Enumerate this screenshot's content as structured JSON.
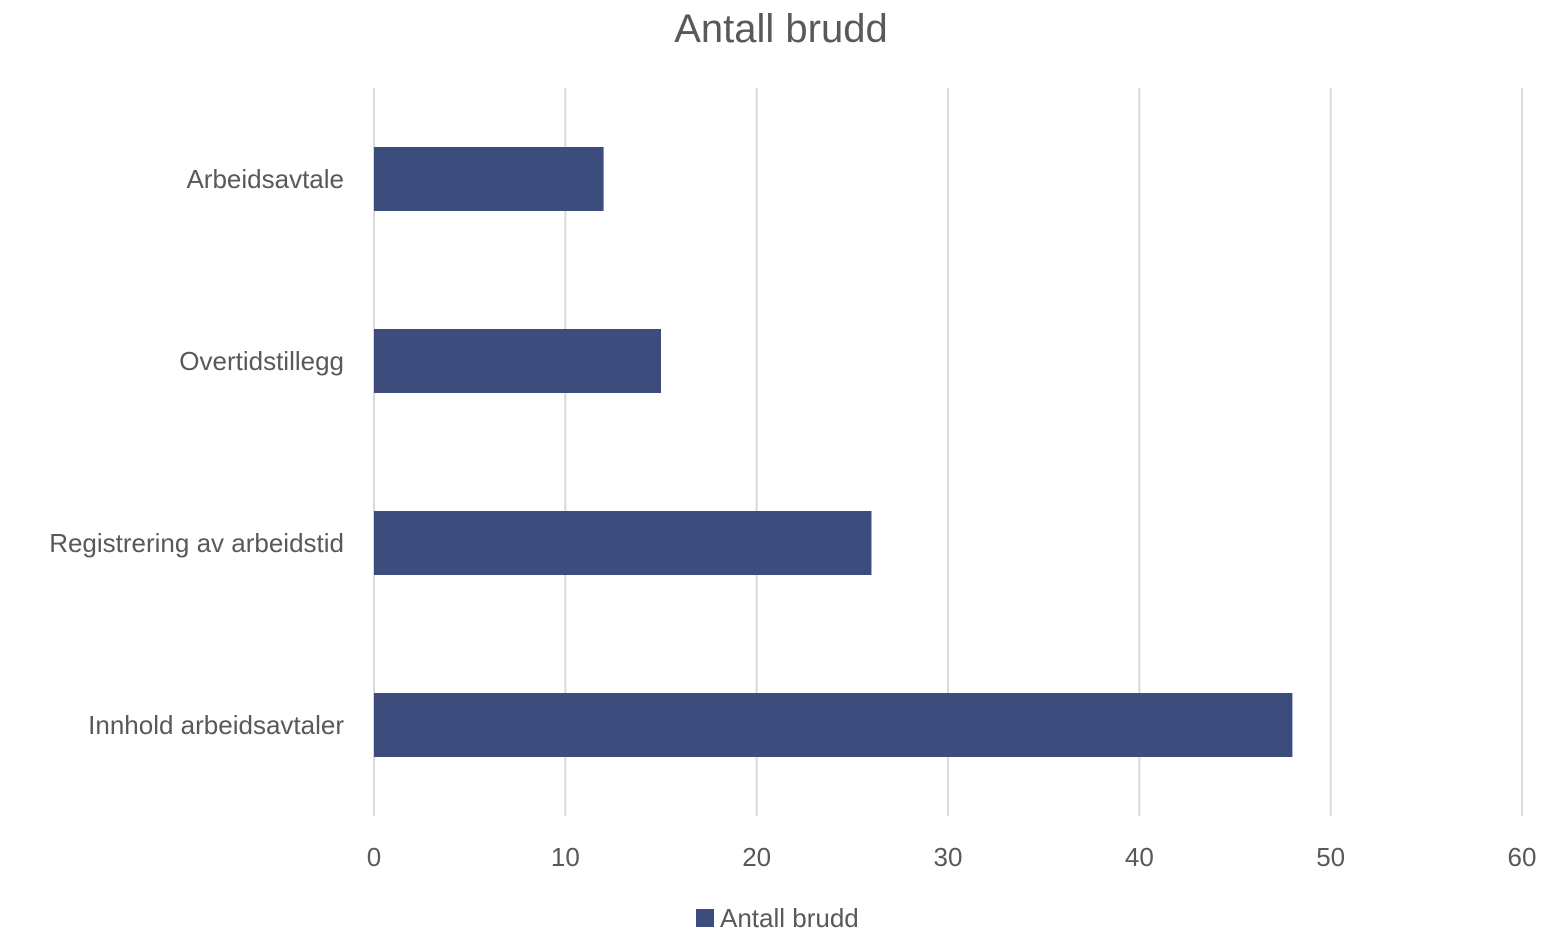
{
  "chart_data": {
    "type": "bar",
    "orientation": "horizontal",
    "title": "Antall brudd",
    "categories": [
      "Arbeidsavtale",
      "Overtidstillegg",
      "Registrering av arbeidstid",
      "Innhold arbeidsavtaler"
    ],
    "series": [
      {
        "name": "Antall brudd",
        "values": [
          12,
          15,
          26,
          48
        ],
        "color": "#3c4c7c"
      }
    ],
    "xlim": [
      0,
      60
    ],
    "xticks": [
      0,
      10,
      20,
      30,
      40,
      50,
      60
    ],
    "xlabel": "",
    "ylabel": "",
    "grid": "vertical",
    "legend": "bottom"
  },
  "colors": {
    "bar": "#3c4c7c",
    "text": "#595959",
    "grid": "#d9d9d9"
  }
}
